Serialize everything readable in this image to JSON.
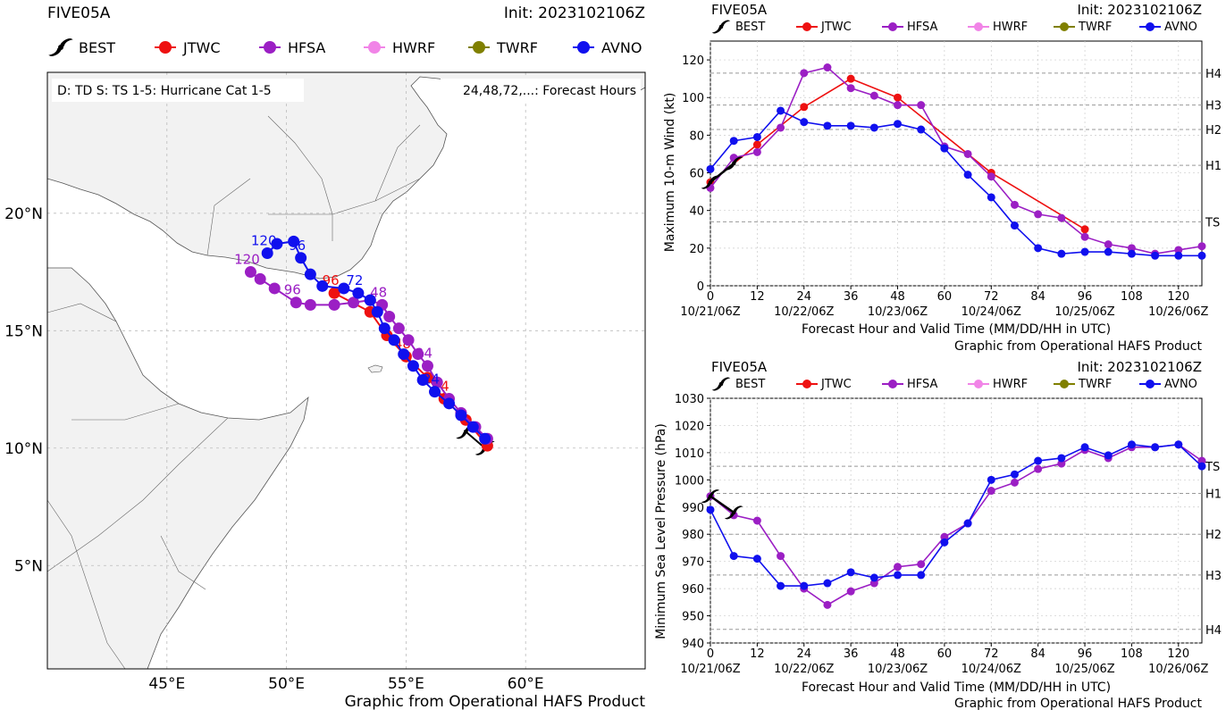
{
  "storm": "FIVE05A",
  "init": "Init: 2023102106Z",
  "credit": "Graphic from Operational HAFS Product",
  "colors": {
    "BEST": "#000000",
    "JTWC": "#ee1111",
    "HFSA": "#9b1fc4",
    "HWRF": "#f184e7",
    "TWRF": "#808000",
    "AVNO": "#1010ee"
  },
  "legend": [
    "BEST",
    "JTWC",
    "HFSA",
    "HWRF",
    "TWRF",
    "AVNO"
  ],
  "map": {
    "info_left": "D: TD  S: TS  1-5: Hurricane Cat 1-5",
    "info_right": "24,48,72,...: Forecast Hours",
    "lon_ticks": [
      "45°E",
      "50°E",
      "55°E",
      "60°E"
    ],
    "lat_ticks": [
      "5°N",
      "10°N",
      "15°N",
      "20°N"
    ]
  },
  "chart_data": [
    {
      "type": "line",
      "panel": "track-map",
      "xlabel": "",
      "ylabel": "",
      "xlim": [
        40,
        65
      ],
      "ylim": [
        0.6,
        26
      ],
      "series": [
        {
          "name": "BEST",
          "lon": [
            58.3,
            57.5
          ],
          "lat": [
            10.0,
            10.7
          ]
        },
        {
          "name": "JTWC",
          "lon": [
            58.4,
            57.5,
            56.6,
            55.9,
            55.0,
            54.2,
            53.5,
            52.0
          ],
          "lat": [
            10.1,
            11.2,
            12.1,
            13.0,
            13.9,
            14.8,
            15.8,
            16.6
          ],
          "labels": [
            "",
            "",
            "24",
            "",
            "48",
            "",
            "",
            "96"
          ]
        },
        {
          "name": "HFSA",
          "lon": [
            58.4,
            57.9,
            57.3,
            56.8,
            56.3,
            55.9,
            55.5,
            55.1,
            54.7,
            54.3,
            54.0,
            53.5,
            52.8,
            52.0,
            51.0,
            50.4,
            49.5,
            48.9,
            48.5
          ],
          "lat": [
            10.4,
            10.9,
            11.5,
            12.1,
            12.8,
            13.5,
            14.0,
            14.6,
            15.1,
            15.6,
            16.1,
            16.3,
            16.2,
            16.1,
            16.1,
            16.2,
            16.8,
            17.2,
            17.5
          ],
          "labels": [
            "",
            "",
            "",
            "",
            "",
            "24",
            "",
            "",
            "",
            "",
            "48",
            "",
            "",
            "",
            "",
            "96",
            "",
            "",
            "120"
          ]
        },
        {
          "name": "AVNO",
          "lon": [
            58.3,
            57.8,
            57.3,
            56.8,
            56.2,
            55.7,
            55.3,
            54.9,
            54.5,
            54.1,
            53.8,
            53.5,
            53.0,
            52.4,
            51.5,
            51.0,
            50.6,
            50.3,
            49.6,
            49.2
          ],
          "lat": [
            10.4,
            10.9,
            11.4,
            11.9,
            12.4,
            12.9,
            13.5,
            14.0,
            14.6,
            15.1,
            15.8,
            16.3,
            16.6,
            16.8,
            16.9,
            17.4,
            18.1,
            18.8,
            18.7,
            18.3
          ],
          "labels": [
            "",
            "",
            "",
            "",
            "24",
            "",
            "",
            "",
            "",
            "",
            "",
            "",
            "72",
            "",
            "",
            "",
            "96",
            "",
            "",
            "120"
          ]
        }
      ]
    },
    {
      "type": "line",
      "panel": "max-wind",
      "title": "FIVE05A",
      "subtitle": "Init: 2023102106Z",
      "xlabel": "Forecast Hour and Valid Time (MM/DD/HH in UTC)",
      "ylabel": "Maximum 10-m Wind (kt)",
      "xlim": [
        0,
        126
      ],
      "ylim": [
        0,
        130
      ],
      "x_ticks": [
        0,
        12,
        24,
        36,
        48,
        60,
        72,
        84,
        96,
        108,
        120
      ],
      "y_ticks": [
        0,
        20,
        40,
        60,
        80,
        100,
        120
      ],
      "date_ticks": [
        "10/21/06Z",
        "10/22/06Z",
        "10/23/06Z",
        "10/24/06Z",
        "10/25/06Z",
        "10/26/06Z"
      ],
      "thresholds": [
        {
          "label": "TS",
          "value": 34
        },
        {
          "label": "H1",
          "value": 64
        },
        {
          "label": "H2",
          "value": 83
        },
        {
          "label": "H3",
          "value": 96
        },
        {
          "label": "H4",
          "value": 113
        }
      ],
      "series": [
        {
          "name": "BEST",
          "x": [
            0,
            6
          ],
          "y": [
            55,
            65
          ]
        },
        {
          "name": "JTWC",
          "x": [
            0,
            12,
            24,
            36,
            48,
            72,
            96
          ],
          "y": [
            55,
            75,
            95,
            110,
            100,
            60,
            30
          ]
        },
        {
          "name": "HFSA",
          "x": [
            0,
            6,
            12,
            18,
            24,
            30,
            36,
            42,
            48,
            54,
            60,
            66,
            72,
            78,
            84,
            90,
            96,
            102,
            108,
            114,
            120,
            126
          ],
          "y": [
            52,
            68,
            71,
            84,
            113,
            116,
            105,
            101,
            96,
            96,
            74,
            70,
            58,
            43,
            38,
            36,
            26,
            22,
            20,
            17,
            19,
            21
          ]
        },
        {
          "name": "AVNO",
          "x": [
            0,
            6,
            12,
            18,
            24,
            30,
            36,
            42,
            48,
            54,
            60,
            66,
            72,
            78,
            84,
            90,
            96,
            102,
            108,
            114,
            120,
            126
          ],
          "y": [
            62,
            77,
            79,
            93,
            87,
            85,
            85,
            84,
            86,
            83,
            73,
            59,
            47,
            32,
            20,
            17,
            18,
            18,
            17,
            16,
            16,
            16
          ]
        }
      ]
    },
    {
      "type": "line",
      "panel": "min-pressure",
      "title": "FIVE05A",
      "subtitle": "Init: 2023102106Z",
      "xlabel": "Forecast Hour and Valid Time (MM/DD/HH in UTC)",
      "ylabel": "Minimum Sea Level Pressure (hPa)",
      "xlim": [
        0,
        126
      ],
      "ylim": [
        940,
        1030
      ],
      "x_ticks": [
        0,
        12,
        24,
        36,
        48,
        60,
        72,
        84,
        96,
        108,
        120
      ],
      "y_ticks": [
        940,
        950,
        960,
        970,
        980,
        990,
        1000,
        1010,
        1020,
        1030
      ],
      "date_ticks": [
        "10/21/06Z",
        "10/22/06Z",
        "10/23/06Z",
        "10/24/06Z",
        "10/25/06Z",
        "10/26/06Z"
      ],
      "thresholds": [
        {
          "label": "TS",
          "value": 1005
        },
        {
          "label": "H1",
          "value": 995
        },
        {
          "label": "H2",
          "value": 980
        },
        {
          "label": "H3",
          "value": 965
        },
        {
          "label": "H4",
          "value": 945
        }
      ],
      "series": [
        {
          "name": "BEST",
          "x": [
            0,
            6
          ],
          "y": [
            994,
            988
          ]
        },
        {
          "name": "HFSA",
          "x": [
            0,
            6,
            12,
            18,
            24,
            30,
            36,
            42,
            48,
            54,
            60,
            66,
            72,
            78,
            84,
            90,
            96,
            102,
            108,
            114,
            120,
            126
          ],
          "y": [
            994,
            987,
            985,
            972,
            960,
            954,
            959,
            962,
            968,
            969,
            979,
            984,
            996,
            999,
            1004,
            1006,
            1011,
            1008,
            1012,
            1012,
            1013,
            1007
          ]
        },
        {
          "name": "AVNO",
          "x": [
            0,
            6,
            12,
            18,
            24,
            30,
            36,
            42,
            48,
            54,
            60,
            66,
            72,
            78,
            84,
            90,
            96,
            102,
            108,
            114,
            120,
            126
          ],
          "y": [
            989,
            972,
            971,
            961,
            961,
            962,
            966,
            964,
            965,
            965,
            977,
            984,
            1000,
            1002,
            1007,
            1008,
            1012,
            1009,
            1013,
            1012,
            1013,
            1005
          ]
        }
      ]
    }
  ]
}
